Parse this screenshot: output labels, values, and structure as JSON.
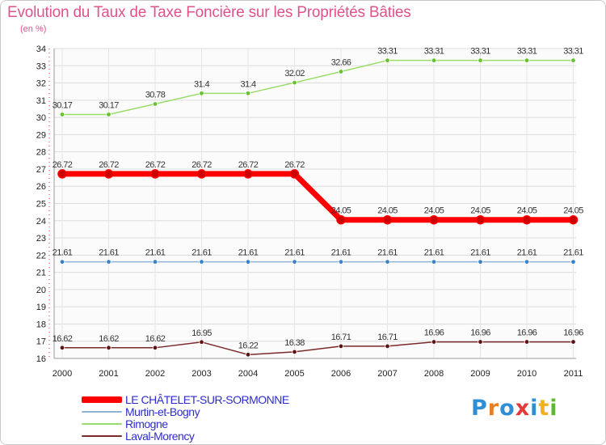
{
  "title": "Evolution du Taux de Taxe Foncière sur les Propriétés Bâties",
  "unit_label": "(en %)",
  "brand": {
    "letters": [
      "P",
      "r",
      "o",
      "x",
      "i",
      "t",
      "i"
    ],
    "colors": [
      "#2f8fd6",
      "#e67e22",
      "#2f8fd6",
      "#e03a3a",
      "#2f8fd6",
      "#f2b01e",
      "#5fb834"
    ]
  },
  "chart_data": {
    "type": "line",
    "title": "Evolution du Taux de Taxe Foncière sur les Propriétés Bâties",
    "ylabel": "(en %)",
    "xlabel": "",
    "ylim": [
      16,
      34
    ],
    "yticks": [
      "16",
      "17",
      "18",
      "19",
      "20",
      "21",
      "22",
      "23",
      "24",
      "25",
      "26",
      "27",
      "28",
      "29",
      "30",
      "31",
      "32",
      "33",
      "34"
    ],
    "categories": [
      "2000",
      "2001",
      "2002",
      "2003",
      "2004",
      "2005",
      "2006",
      "2007",
      "2008",
      "2009",
      "2010",
      "2011"
    ],
    "grid": true,
    "series": [
      {
        "name": "Rimogne",
        "color": "#9adc6a",
        "marker": "#66c22e",
        "width": 1.5,
        "values": [
          30.17,
          30.17,
          30.78,
          31.4,
          31.4,
          32.02,
          32.66,
          33.31,
          33.31,
          33.31,
          33.31,
          33.31
        ],
        "labels": [
          "30.17",
          "30.17",
          "30.78",
          "31.4",
          "31.4",
          "32.02",
          "32.66",
          "33.31",
          "33.31",
          "33.31",
          "33.31",
          "33.31"
        ]
      },
      {
        "name": "LE CHÂTELET-SUR-SORMONNE",
        "color": "#ff0000",
        "marker": "#cc0000",
        "width": 7,
        "values": [
          26.72,
          26.72,
          26.72,
          26.72,
          26.72,
          26.72,
          24.05,
          24.05,
          24.05,
          24.05,
          24.05,
          24.05
        ],
        "labels": [
          "26.72",
          "26.72",
          "26.72",
          "26.72",
          "26.72",
          "26.72",
          "24.05",
          "24.05",
          "24.05",
          "24.05",
          "24.05",
          "24.05"
        ]
      },
      {
        "name": "Murtin-et-Bogny",
        "color": "#8eb4da",
        "marker": "#3a82c8",
        "width": 1.5,
        "values": [
          21.61,
          21.61,
          21.61,
          21.61,
          21.61,
          21.61,
          21.61,
          21.61,
          21.61,
          21.61,
          21.61,
          21.61
        ],
        "labels": [
          "21.61",
          "21.61",
          "21.61",
          "21.61",
          "21.61",
          "21.61",
          "21.61",
          "21.61",
          "21.61",
          "21.61",
          "21.61",
          "21.61"
        ]
      },
      {
        "name": "Laval-Morency",
        "color": "#7a2a2a",
        "marker": "#5e1414",
        "width": 1.5,
        "values": [
          16.62,
          16.62,
          16.62,
          16.95,
          16.22,
          16.38,
          16.71,
          16.71,
          16.96,
          16.96,
          16.96,
          16.96
        ],
        "labels": [
          "16.62",
          "16.62",
          "16.62",
          "16.95",
          "16.22",
          "16.38",
          "16.71",
          "16.71",
          "16.96",
          "16.96",
          "16.96",
          "16.96"
        ]
      }
    ],
    "legend": {
      "placement": "bottom-left",
      "order": [
        "LE CHÂTELET-SUR-SORMONNE",
        "Murtin-et-Bogny",
        "Rimogne",
        "Laval-Morency"
      ],
      "colors": [
        "#ff0000",
        "#8eb4da",
        "#9adc6a",
        "#7a2a2a"
      ]
    }
  }
}
